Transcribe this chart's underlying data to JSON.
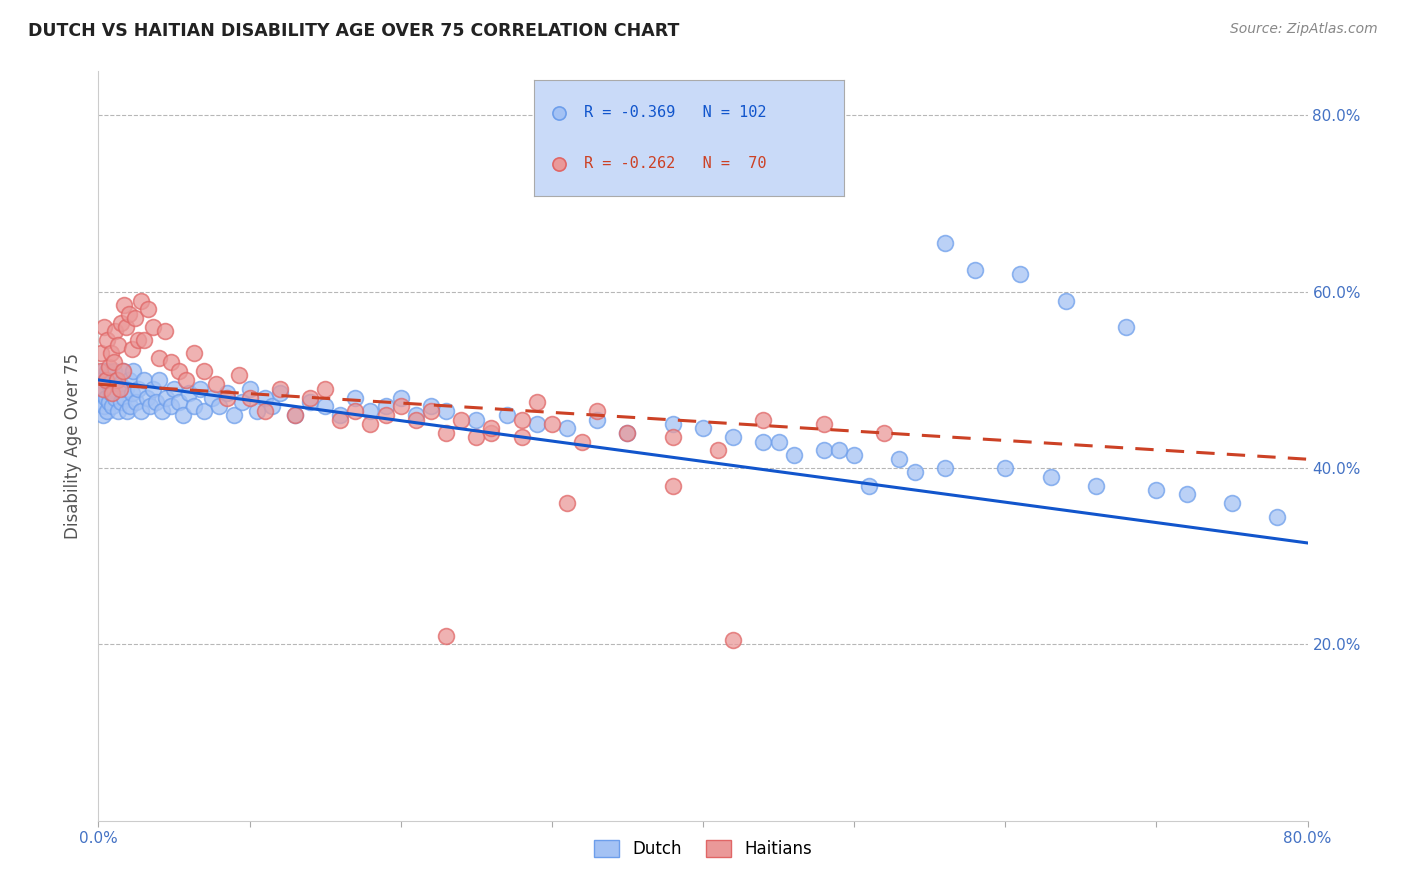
{
  "title": "DUTCH VS HAITIAN DISABILITY AGE OVER 75 CORRELATION CHART",
  "source": "Source: ZipAtlas.com",
  "ylabel": "Disability Age Over 75",
  "x_min": 0.0,
  "x_max": 0.8,
  "y_min": 0.0,
  "y_max": 0.85,
  "dutch_R": -0.369,
  "dutch_N": 102,
  "haitian_R": -0.262,
  "haitian_N": 70,
  "dutch_color": "#a4c2f4",
  "haitian_color": "#ea9999",
  "dutch_edge_color": "#6d9eeb",
  "haitian_edge_color": "#e06666",
  "dutch_line_color": "#1155cc",
  "haitian_line_color": "#cc4125",
  "legend_box_color": "#c9daf8",
  "background_color": "#ffffff",
  "grid_color": "#b7b7b7",
  "dutch_line_y_start": 0.5,
  "dutch_line_y_end": 0.315,
  "haitian_line_y_start": 0.495,
  "haitian_line_y_end": 0.41,
  "dutch_x": [
    0.001,
    0.002,
    0.002,
    0.003,
    0.003,
    0.004,
    0.004,
    0.005,
    0.005,
    0.006,
    0.006,
    0.007,
    0.007,
    0.008,
    0.008,
    0.009,
    0.01,
    0.01,
    0.011,
    0.012,
    0.013,
    0.014,
    0.015,
    0.016,
    0.017,
    0.018,
    0.019,
    0.02,
    0.021,
    0.022,
    0.023,
    0.025,
    0.026,
    0.028,
    0.03,
    0.032,
    0.034,
    0.036,
    0.038,
    0.04,
    0.042,
    0.045,
    0.048,
    0.05,
    0.053,
    0.056,
    0.06,
    0.063,
    0.067,
    0.07,
    0.075,
    0.08,
    0.085,
    0.09,
    0.095,
    0.1,
    0.105,
    0.11,
    0.115,
    0.12,
    0.13,
    0.14,
    0.15,
    0.16,
    0.17,
    0.18,
    0.19,
    0.2,
    0.21,
    0.22,
    0.23,
    0.25,
    0.27,
    0.29,
    0.31,
    0.33,
    0.35,
    0.38,
    0.4,
    0.42,
    0.45,
    0.48,
    0.5,
    0.53,
    0.56,
    0.6,
    0.63,
    0.66,
    0.7,
    0.72,
    0.75,
    0.78,
    0.56,
    0.58,
    0.61,
    0.64,
    0.68,
    0.49,
    0.51,
    0.54,
    0.44,
    0.46
  ],
  "dutch_y": [
    0.475,
    0.485,
    0.5,
    0.46,
    0.51,
    0.49,
    0.47,
    0.48,
    0.5,
    0.51,
    0.465,
    0.495,
    0.475,
    0.485,
    0.505,
    0.47,
    0.49,
    0.51,
    0.48,
    0.5,
    0.465,
    0.495,
    0.475,
    0.51,
    0.48,
    0.49,
    0.465,
    0.5,
    0.47,
    0.485,
    0.51,
    0.475,
    0.49,
    0.465,
    0.5,
    0.48,
    0.47,
    0.49,
    0.475,
    0.5,
    0.465,
    0.48,
    0.47,
    0.49,
    0.475,
    0.46,
    0.485,
    0.47,
    0.49,
    0.465,
    0.48,
    0.47,
    0.485,
    0.46,
    0.475,
    0.49,
    0.465,
    0.48,
    0.47,
    0.485,
    0.46,
    0.475,
    0.47,
    0.46,
    0.48,
    0.465,
    0.47,
    0.48,
    0.46,
    0.47,
    0.465,
    0.455,
    0.46,
    0.45,
    0.445,
    0.455,
    0.44,
    0.45,
    0.445,
    0.435,
    0.43,
    0.42,
    0.415,
    0.41,
    0.4,
    0.4,
    0.39,
    0.38,
    0.375,
    0.37,
    0.36,
    0.345,
    0.655,
    0.625,
    0.62,
    0.59,
    0.56,
    0.42,
    0.38,
    0.395,
    0.43,
    0.415
  ],
  "haitian_x": [
    0.001,
    0.002,
    0.003,
    0.004,
    0.005,
    0.006,
    0.007,
    0.008,
    0.009,
    0.01,
    0.011,
    0.012,
    0.013,
    0.014,
    0.015,
    0.016,
    0.017,
    0.018,
    0.02,
    0.022,
    0.024,
    0.026,
    0.028,
    0.03,
    0.033,
    0.036,
    0.04,
    0.044,
    0.048,
    0.053,
    0.058,
    0.063,
    0.07,
    0.078,
    0.085,
    0.093,
    0.1,
    0.11,
    0.12,
    0.13,
    0.14,
    0.15,
    0.16,
    0.17,
    0.18,
    0.19,
    0.2,
    0.21,
    0.22,
    0.23,
    0.24,
    0.26,
    0.28,
    0.3,
    0.32,
    0.35,
    0.38,
    0.41,
    0.44,
    0.48,
    0.52,
    0.38,
    0.31,
    0.28,
    0.26,
    0.25,
    0.23,
    0.29,
    0.33,
    0.42
  ],
  "haitian_y": [
    0.51,
    0.53,
    0.49,
    0.56,
    0.5,
    0.545,
    0.515,
    0.53,
    0.485,
    0.52,
    0.555,
    0.5,
    0.54,
    0.49,
    0.565,
    0.51,
    0.585,
    0.56,
    0.575,
    0.535,
    0.57,
    0.545,
    0.59,
    0.545,
    0.58,
    0.56,
    0.525,
    0.555,
    0.52,
    0.51,
    0.5,
    0.53,
    0.51,
    0.495,
    0.48,
    0.505,
    0.48,
    0.465,
    0.49,
    0.46,
    0.48,
    0.49,
    0.455,
    0.465,
    0.45,
    0.46,
    0.47,
    0.455,
    0.465,
    0.44,
    0.455,
    0.44,
    0.435,
    0.45,
    0.43,
    0.44,
    0.435,
    0.42,
    0.455,
    0.45,
    0.44,
    0.38,
    0.36,
    0.455,
    0.445,
    0.435,
    0.21,
    0.475,
    0.465,
    0.205
  ]
}
